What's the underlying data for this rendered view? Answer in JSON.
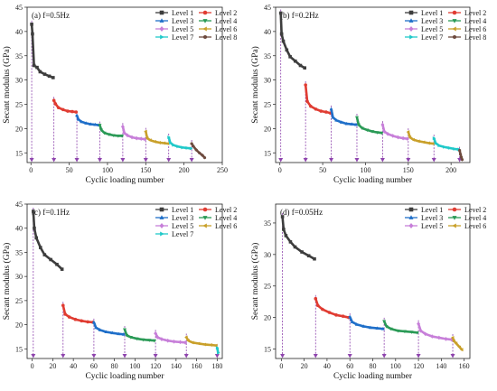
{
  "chart_data": [
    {
      "type": "line",
      "panel_label": "(a) f=0.5Hz",
      "xlabel": "Cyclic loading number",
      "ylabel": "Secant modulus (GPa)",
      "xlim": [
        -5,
        250
      ],
      "ylim": [
        13,
        45
      ],
      "xticks": [
        "0",
        "50",
        "100",
        "150",
        "200",
        "250"
      ],
      "yticks": [
        "15",
        "20",
        "25",
        "30",
        "35",
        "40",
        "45"
      ],
      "level_starts": [
        1,
        30,
        60,
        90,
        120,
        150,
        180,
        210
      ],
      "legend_position": "top-right",
      "series": [
        {
          "name": "Level 1",
          "color": "#3d3d3d",
          "marker": "square",
          "x": [
            1,
            2,
            4,
            8,
            12,
            18,
            24,
            29
          ],
          "y": [
            41.5,
            39.5,
            33,
            32.6,
            31.7,
            31.2,
            30.8,
            30.5
          ]
        },
        {
          "name": "Level 2",
          "color": "#e03c32",
          "marker": "circle",
          "x": [
            30,
            32,
            36,
            42,
            48,
            54,
            59
          ],
          "y": [
            25.8,
            25.1,
            24.3,
            23.9,
            23.6,
            23.5,
            23.4
          ]
        },
        {
          "name": "Level 3",
          "color": "#1f6fc9",
          "marker": "triangle-up",
          "x": [
            60,
            62,
            66,
            72,
            78,
            84,
            89
          ],
          "y": [
            22.7,
            21.9,
            21.4,
            21.1,
            20.9,
            20.8,
            20.7
          ]
        },
        {
          "name": "Level 4",
          "color": "#2a9a56",
          "marker": "triangle-down",
          "x": [
            90,
            92,
            96,
            102,
            108,
            114,
            119
          ],
          "y": [
            20.7,
            19.7,
            19.1,
            18.8,
            18.6,
            18.5,
            18.5
          ]
        },
        {
          "name": "Level 5",
          "color": "#c77fd9",
          "marker": "diamond",
          "x": [
            120,
            122,
            126,
            132,
            138,
            144,
            149
          ],
          "y": [
            20.4,
            19.1,
            18.6,
            18.2,
            18.0,
            17.9,
            17.8
          ]
        },
        {
          "name": "Level 6",
          "color": "#c9a02a",
          "marker": "triangle-left",
          "x": [
            150,
            152,
            156,
            162,
            168,
            174,
            179
          ],
          "y": [
            19.4,
            18.0,
            17.6,
            17.3,
            17.1,
            17.0,
            16.9
          ]
        },
        {
          "name": "Level 7",
          "color": "#20c9c9",
          "marker": "triangle-right",
          "x": [
            180,
            182,
            186,
            192,
            198,
            204,
            209
          ],
          "y": [
            18.2,
            17.1,
            16.6,
            16.3,
            16.1,
            16.0,
            15.9
          ]
        },
        {
          "name": "Level 8",
          "color": "#6d4a3e",
          "marker": "hexagon",
          "x": [
            210,
            212,
            216,
            220,
            224,
            227
          ],
          "y": [
            16.9,
            16.4,
            15.6,
            15.0,
            14.5,
            14.0
          ]
        }
      ]
    },
    {
      "type": "line",
      "panel_label": "(b) f=0.2Hz",
      "xlabel": "Cyclic loading number",
      "ylabel": "Secant modulus (GPa)",
      "xlim": [
        -5,
        222
      ],
      "ylim": [
        13,
        45
      ],
      "xticks": [
        "0",
        "50",
        "100",
        "150",
        "200"
      ],
      "yticks": [
        "15",
        "20",
        "25",
        "30",
        "35",
        "40",
        "45"
      ],
      "level_starts": [
        1,
        30,
        60,
        90,
        120,
        150,
        180,
        210
      ],
      "legend_position": "top-right",
      "series": [
        {
          "name": "Level 1",
          "color": "#3d3d3d",
          "marker": "square",
          "x": [
            1,
            2,
            4,
            8,
            12,
            18,
            24,
            29
          ],
          "y": [
            43.8,
            39.5,
            38.0,
            36.2,
            34.8,
            33.9,
            33.0,
            32.5
          ]
        },
        {
          "name": "Level 2",
          "color": "#e03c32",
          "marker": "circle",
          "x": [
            30,
            32,
            36,
            42,
            48,
            54,
            59
          ],
          "y": [
            29.0,
            25.6,
            24.6,
            24.0,
            23.6,
            23.4,
            23.2
          ]
        },
        {
          "name": "Level 3",
          "color": "#1f6fc9",
          "marker": "triangle-up",
          "x": [
            60,
            62,
            66,
            72,
            78,
            84,
            89
          ],
          "y": [
            24.0,
            22.3,
            21.7,
            21.3,
            21.0,
            20.9,
            20.8
          ]
        },
        {
          "name": "Level 4",
          "color": "#2a9a56",
          "marker": "triangle-down",
          "x": [
            90,
            92,
            96,
            102,
            108,
            114,
            119
          ],
          "y": [
            22.3,
            20.8,
            20.1,
            19.7,
            19.4,
            19.2,
            19.1
          ]
        },
        {
          "name": "Level 5",
          "color": "#c77fd9",
          "marker": "diamond",
          "x": [
            120,
            122,
            126,
            132,
            138,
            144,
            149
          ],
          "y": [
            20.8,
            19.4,
            18.9,
            18.5,
            18.2,
            18.0,
            17.9
          ]
        },
        {
          "name": "Level 6",
          "color": "#c9a02a",
          "marker": "triangle-left",
          "x": [
            150,
            152,
            156,
            162,
            168,
            174,
            179
          ],
          "y": [
            19.3,
            18.2,
            17.7,
            17.4,
            17.2,
            17.0,
            16.9
          ]
        },
        {
          "name": "Level 7",
          "color": "#20c9c9",
          "marker": "triangle-right",
          "x": [
            180,
            182,
            186,
            192,
            198,
            204,
            209
          ],
          "y": [
            18.0,
            17.0,
            16.5,
            16.2,
            16.0,
            15.8,
            15.7
          ]
        },
        {
          "name": "Level 8",
          "color": "#6d4a3e",
          "marker": "hexagon",
          "x": [
            210,
            211,
            212,
            213
          ],
          "y": [
            15.5,
            14.7,
            14.1,
            13.6
          ]
        }
      ]
    },
    {
      "type": "line",
      "panel_label": "(c) f=0.1Hz",
      "xlabel": "Cyclic loading number",
      "ylabel": "Secant modulus (GPa)",
      "xlim": [
        -5,
        185
      ],
      "ylim": [
        13,
        45
      ],
      "xticks": [
        "0",
        "20",
        "40",
        "60",
        "80",
        "100",
        "120",
        "140",
        "160",
        "180"
      ],
      "yticks": [
        "15",
        "20",
        "25",
        "30",
        "35",
        "40",
        "45"
      ],
      "level_starts": [
        1,
        30,
        60,
        90,
        120,
        150,
        180
      ],
      "legend_position": "top-right",
      "series": [
        {
          "name": "Level 1",
          "color": "#3d3d3d",
          "marker": "square",
          "x": [
            1,
            2,
            4,
            8,
            12,
            18,
            24,
            29
          ],
          "y": [
            43.5,
            40.0,
            38.0,
            36.0,
            34.5,
            33.5,
            32.5,
            31.5
          ]
        },
        {
          "name": "Level 2",
          "color": "#e03c32",
          "marker": "circle",
          "x": [
            30,
            32,
            36,
            42,
            48,
            54,
            59
          ],
          "y": [
            24.0,
            22.2,
            21.6,
            21.1,
            20.8,
            20.6,
            20.5
          ]
        },
        {
          "name": "Level 3",
          "color": "#1f6fc9",
          "marker": "triangle-up",
          "x": [
            60,
            62,
            66,
            72,
            78,
            84,
            89
          ],
          "y": [
            20.5,
            19.4,
            18.9,
            18.5,
            18.3,
            18.1,
            18.0
          ]
        },
        {
          "name": "Level 4",
          "color": "#2a9a56",
          "marker": "triangle-down",
          "x": [
            90,
            92,
            96,
            102,
            108,
            114,
            119
          ],
          "y": [
            19.0,
            17.8,
            17.4,
            17.1,
            16.9,
            16.8,
            16.7
          ]
        },
        {
          "name": "Level 5",
          "color": "#c77fd9",
          "marker": "diamond",
          "x": [
            120,
            122,
            126,
            132,
            138,
            144,
            149
          ],
          "y": [
            18.2,
            17.4,
            17.0,
            16.7,
            16.5,
            16.4,
            16.3
          ]
        },
        {
          "name": "Level 6",
          "color": "#c9a02a",
          "marker": "triangle-left",
          "x": [
            150,
            152,
            156,
            162,
            168,
            174,
            179
          ],
          "y": [
            17.4,
            16.7,
            16.3,
            16.1,
            15.9,
            15.8,
            15.7
          ]
        },
        {
          "name": "Level 7",
          "color": "#20c9c9",
          "marker": "triangle-right",
          "x": [
            180,
            181
          ],
          "y": [
            15.2,
            14.2
          ]
        }
      ]
    },
    {
      "type": "line",
      "panel_label": "(d) f=0.05Hz",
      "xlabel": "Cyclic loading number",
      "ylabel": "Secant modulus (GPa)",
      "xlim": [
        -5,
        165
      ],
      "ylim": [
        13.5,
        38
      ],
      "xticks": [
        "0",
        "20",
        "40",
        "60",
        "80",
        "100",
        "120",
        "140",
        "160"
      ],
      "yticks": [
        "15",
        "20",
        "25",
        "30",
        "35"
      ],
      "level_starts": [
        1,
        30,
        60,
        90,
        120,
        150
      ],
      "legend_position": "top-right",
      "series": [
        {
          "name": "Level 1",
          "color": "#3d3d3d",
          "marker": "square",
          "x": [
            1,
            2,
            4,
            8,
            12,
            18,
            24,
            29
          ],
          "y": [
            36.0,
            34.0,
            33.0,
            32.0,
            31.2,
            30.4,
            29.8,
            29.3
          ]
        },
        {
          "name": "Level 2",
          "color": "#e03c32",
          "marker": "circle",
          "x": [
            30,
            32,
            36,
            42,
            48,
            54,
            59
          ],
          "y": [
            23.0,
            21.9,
            21.3,
            20.8,
            20.4,
            20.2,
            20.0
          ]
        },
        {
          "name": "Level 3",
          "color": "#1f6fc9",
          "marker": "triangle-up",
          "x": [
            60,
            62,
            66,
            72,
            78,
            84,
            89
          ],
          "y": [
            20.1,
            19.3,
            18.9,
            18.6,
            18.4,
            18.3,
            18.2
          ]
        },
        {
          "name": "Level 4",
          "color": "#2a9a56",
          "marker": "triangle-down",
          "x": [
            90,
            92,
            96,
            102,
            108,
            114,
            119
          ],
          "y": [
            19.4,
            18.6,
            18.2,
            17.9,
            17.8,
            17.7,
            17.6
          ]
        },
        {
          "name": "Level 5",
          "color": "#c77fd9",
          "marker": "diamond",
          "x": [
            120,
            122,
            126,
            132,
            138,
            144,
            149
          ],
          "y": [
            19.0,
            17.9,
            17.4,
            17.0,
            16.8,
            16.6,
            16.5
          ]
        },
        {
          "name": "Level 6",
          "color": "#c9a02a",
          "marker": "triangle-left",
          "x": [
            150,
            151,
            153,
            156,
            158
          ],
          "y": [
            16.8,
            16.3,
            15.9,
            15.3,
            14.9
          ]
        }
      ]
    }
  ]
}
